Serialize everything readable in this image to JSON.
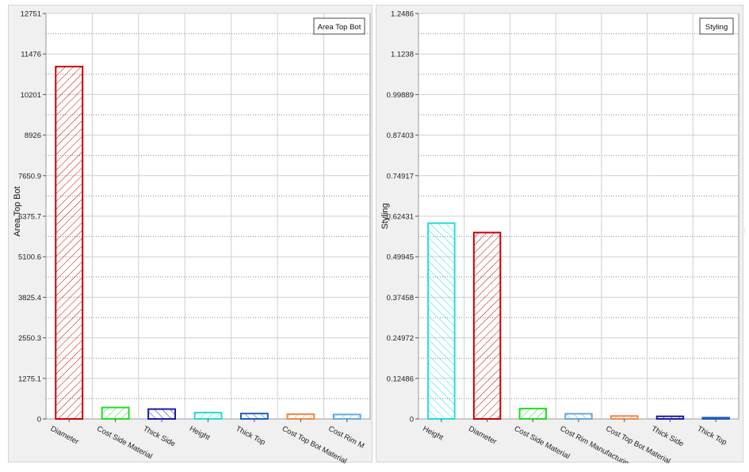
{
  "chart_data": [
    {
      "type": "bar",
      "ylabel": "Area Top Bot",
      "legend": {
        "label": "Area Top Bot",
        "position": "top-right"
      },
      "ylim": [
        0,
        12751
      ],
      "yticks": [
        "0",
        "1275.1",
        "2550.3",
        "3825.4",
        "5100.6",
        "6375.7",
        "7650.9",
        "8926",
        "10201",
        "11476",
        "12751"
      ],
      "grid": true,
      "categories": [
        "Diameter",
        "Cost Side Material",
        "Thick Side",
        "Height",
        "Thick Top",
        "Cost Top Bot Material",
        "Cost Rim M"
      ],
      "values": [
        11080,
        360,
        310,
        200,
        170,
        150,
        140
      ],
      "colors": [
        "#d00000",
        "#22dd22",
        "#1a1aa8",
        "#22dddd",
        "#1f5fb8",
        "#f08850",
        "#66aadd"
      ]
    },
    {
      "type": "bar",
      "ylabel": "Styling",
      "legend": {
        "label": "Styling",
        "position": "top-right"
      },
      "ylim": [
        0,
        1.2486
      ],
      "yticks": [
        "0",
        "0.12486",
        "0.24972",
        "0.37458",
        "0.49945",
        "0.62431",
        "0.74917",
        "0.87403",
        "0.99889",
        "1.1238",
        "1.2486"
      ],
      "grid": true,
      "categories": [
        "Height",
        "Diameter",
        "Cost Side Material",
        "Cost Rim Manufacturing",
        "Cost Top Bot Material",
        "Thick Side",
        "Thick Top"
      ],
      "values": [
        0.603,
        0.574,
        0.032,
        0.016,
        0.009,
        0.008,
        0.004
      ],
      "colors": [
        "#22dddd",
        "#c80000",
        "#22dd22",
        "#66aadd",
        "#f08850",
        "#1a1aa8",
        "#1f5fb8"
      ]
    }
  ]
}
